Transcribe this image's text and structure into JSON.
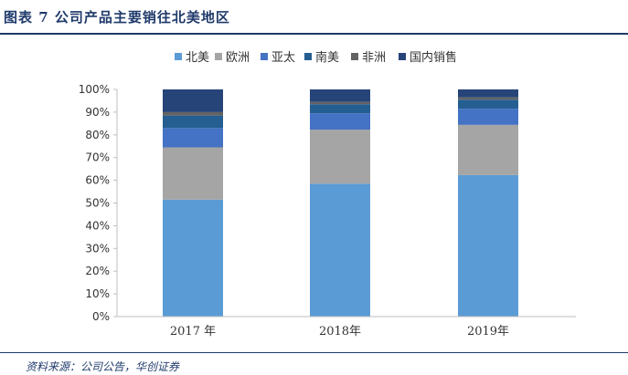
{
  "header": {
    "title": "图表 7  公司产品主要销往北美地区"
  },
  "footer": {
    "source": "资料来源：公司公告，华创证券"
  },
  "chart_data": {
    "type": "bar",
    "stacked": true,
    "categories": [
      "2017 年",
      "2018年",
      "2019年"
    ],
    "series": [
      {
        "name": "北美",
        "color": "#5b9bd5",
        "values": [
          51.5,
          58.5,
          62.3
        ]
      },
      {
        "name": "欧洲",
        "color": "#a5a5a5",
        "values": [
          23.0,
          23.8,
          22.1
        ]
      },
      {
        "name": "亚太",
        "color": "#4472c4",
        "values": [
          8.5,
          7.2,
          7.1
        ]
      },
      {
        "name": "南美",
        "color": "#255e91",
        "values": [
          5.5,
          4.0,
          4.0
        ]
      },
      {
        "name": "非洲",
        "color": "#636363",
        "values": [
          1.5,
          1.0,
          1.0
        ]
      },
      {
        "name": "国内销售",
        "color": "#264478",
        "values": [
          10.0,
          5.5,
          3.5
        ]
      }
    ],
    "yticks": [
      "0%",
      "10%",
      "20%",
      "30%",
      "40%",
      "50%",
      "60%",
      "70%",
      "80%",
      "90%",
      "100%"
    ],
    "ylim": [
      0,
      100
    ],
    "legend_position": "top",
    "grid": false
  }
}
